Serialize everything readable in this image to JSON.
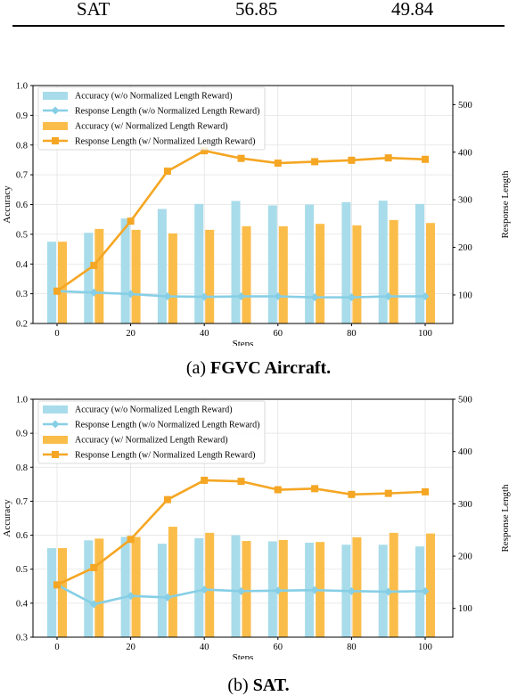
{
  "top_table_row": {
    "label": "SAT",
    "value1": "56.85",
    "value2": "49.84"
  },
  "colors": {
    "bar_without": "#a8dcea",
    "bar_with": "#fbbd4a",
    "line_without": "#86cfe6",
    "line_with": "#f5a623"
  },
  "chart_data": [
    {
      "type": "bar",
      "caption_prefix": "(a) ",
      "caption_bold": "FGVC Aircraft.",
      "xlabel": "Steps",
      "ylabel": "Accuracy",
      "y2label": "Response Length",
      "x": [
        0,
        10,
        20,
        30,
        40,
        50,
        60,
        70,
        80,
        90,
        100
      ],
      "xticks": [
        0,
        20,
        40,
        60,
        80,
        100
      ],
      "ylim": [
        0.2,
        1.0
      ],
      "yticks": [
        0.2,
        0.3,
        0.4,
        0.5,
        0.6,
        0.7,
        0.8,
        0.9,
        1.0
      ],
      "y2lim": [
        40,
        540
      ],
      "y2ticks": [
        100,
        200,
        300,
        400,
        500
      ],
      "grid": true,
      "legend_position": "top-left",
      "series": [
        {
          "name": "Accuracy (w/o Normalized Length Reward)",
          "kind": "bar",
          "axis": "left",
          "values": [
            0.475,
            0.505,
            0.553,
            0.585,
            0.602,
            0.612,
            0.597,
            0.6,
            0.608,
            0.613,
            0.602
          ]
        },
        {
          "name": "Response Length (w/o Normalized Length Reward)",
          "kind": "line",
          "axis": "right",
          "values": [
            108,
            105,
            102,
            97,
            96,
            97,
            97,
            95,
            95,
            97,
            97
          ]
        },
        {
          "name": "Accuracy (w/ Normalized Length Reward)",
          "kind": "bar",
          "axis": "left",
          "values": [
            0.475,
            0.518,
            0.515,
            0.503,
            0.515,
            0.527,
            0.527,
            0.535,
            0.53,
            0.548,
            0.538
          ]
        },
        {
          "name": "Response Length (w/ Normalized Length Reward)",
          "kind": "line",
          "axis": "right",
          "values": [
            108,
            162,
            255,
            360,
            403,
            387,
            377,
            380,
            383,
            388,
            385
          ]
        }
      ]
    },
    {
      "type": "bar",
      "caption_prefix": "(b) ",
      "caption_bold": "SAT.",
      "xlabel": "Steps",
      "ylabel": "Accuracy",
      "y2label": "Response Length",
      "x": [
        0,
        10,
        20,
        30,
        40,
        50,
        60,
        70,
        80,
        90,
        100
      ],
      "xticks": [
        0,
        20,
        40,
        60,
        80,
        100
      ],
      "ylim": [
        0.3,
        1.0
      ],
      "yticks": [
        0.3,
        0.4,
        0.5,
        0.6,
        0.7,
        0.8,
        0.9,
        1.0
      ],
      "y2lim": [
        45,
        500
      ],
      "y2ticks": [
        100,
        200,
        300,
        400,
        500
      ],
      "grid": true,
      "legend_position": "top-left",
      "series": [
        {
          "name": "Accuracy (w/o Normalized Length Reward)",
          "kind": "bar",
          "axis": "left",
          "values": [
            0.562,
            0.585,
            0.595,
            0.575,
            0.591,
            0.6,
            0.582,
            0.578,
            0.572,
            0.572,
            0.567
          ]
        },
        {
          "name": "Response Length (w/o Normalized Length Reward)",
          "kind": "line",
          "axis": "right",
          "values": [
            145,
            108,
            124,
            121,
            136,
            133,
            134,
            135,
            133,
            132,
            133
          ]
        },
        {
          "name": "Accuracy (w/ Normalized Length Reward)",
          "kind": "bar",
          "axis": "left",
          "values": [
            0.562,
            0.59,
            0.595,
            0.625,
            0.607,
            0.583,
            0.586,
            0.58,
            0.594,
            0.607,
            0.605
          ]
        },
        {
          "name": "Response Length (w/ Normalized Length Reward)",
          "kind": "line",
          "axis": "right",
          "values": [
            145,
            178,
            232,
            308,
            345,
            343,
            327,
            329,
            318,
            320,
            323
          ]
        }
      ]
    }
  ]
}
